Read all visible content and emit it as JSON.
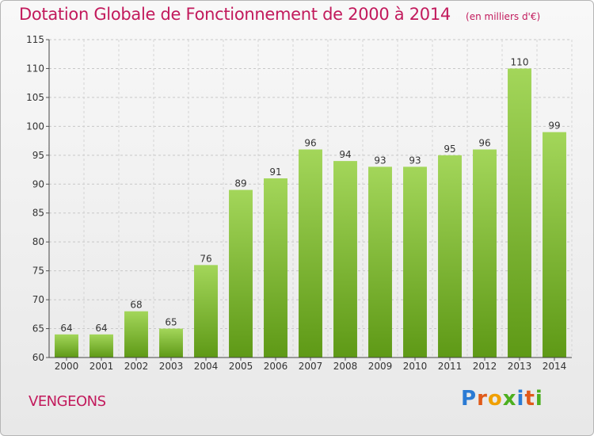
{
  "header": {
    "title": "Dotation Globale de Fonctionnement de 2000 à 2014",
    "unit": "(en milliers d'€)"
  },
  "footer": {
    "commune": "VENGEONS",
    "logo_text": "Proxiti"
  },
  "colors": {
    "accent": "#c21a5c",
    "bar_light": "#9dd24f",
    "bar_dark": "#5f9a14",
    "axis": "#333333"
  },
  "chart_data": {
    "type": "bar",
    "title": "Dotation Globale de Fonctionnement de 2000 à 2014",
    "subtitle": "(en milliers d'€)",
    "xlabel": "",
    "ylabel": "",
    "categories": [
      "2000",
      "2001",
      "2002",
      "2003",
      "2004",
      "2005",
      "2006",
      "2007",
      "2008",
      "2009",
      "2010",
      "2011",
      "2012",
      "2013",
      "2014"
    ],
    "values": [
      64,
      64,
      68,
      65,
      76,
      89,
      91,
      96,
      94,
      93,
      93,
      95,
      96,
      110,
      99
    ],
    "ylim": [
      60,
      115
    ],
    "yticks": [
      60,
      65,
      70,
      75,
      80,
      85,
      90,
      95,
      100,
      105,
      110,
      115
    ],
    "grid": true,
    "legend": "none"
  }
}
